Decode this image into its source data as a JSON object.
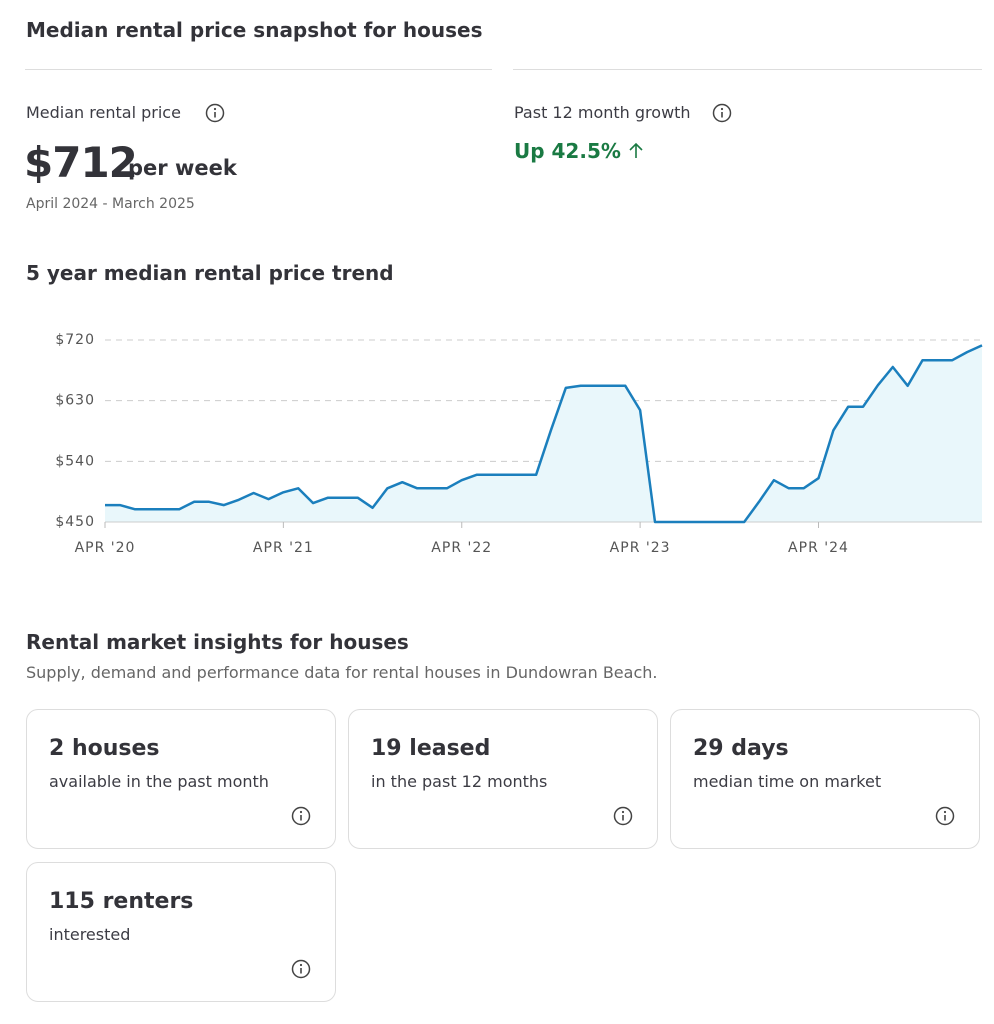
{
  "header": {
    "title": "Median rental price snapshot for houses"
  },
  "price": {
    "label": "Median rental price",
    "value": "$712",
    "unit": "per week",
    "period": "April 2024 - March 2025"
  },
  "growth": {
    "label": "Past 12 month growth",
    "value": "Up 42.5%"
  },
  "chart_data": {
    "type": "line",
    "title": "5 year median rental price trend",
    "categories": [
      "APR '20",
      null,
      null,
      null,
      null,
      null,
      null,
      null,
      null,
      null,
      null,
      null,
      "APR '21",
      null,
      null,
      null,
      null,
      null,
      null,
      null,
      null,
      null,
      null,
      null,
      "APR '22",
      null,
      null,
      null,
      null,
      null,
      null,
      null,
      null,
      null,
      null,
      null,
      "APR '23",
      null,
      null,
      null,
      null,
      null,
      null,
      null,
      null,
      null,
      null,
      null,
      "APR '24",
      null,
      null,
      null,
      null,
      null,
      null,
      null,
      null,
      null,
      null,
      null
    ],
    "values": [
      475,
      475,
      469,
      469,
      469,
      469,
      480,
      480,
      475,
      483,
      493,
      484,
      494,
      500,
      478,
      486,
      486,
      486,
      471,
      500,
      509,
      500,
      500,
      500,
      512,
      520,
      520,
      520,
      520,
      520,
      586,
      649,
      652,
      652,
      652,
      652,
      616,
      450,
      450,
      450,
      450,
      450,
      450,
      450,
      480,
      512,
      500,
      500,
      515,
      586,
      621,
      621,
      653,
      680,
      652,
      690,
      690,
      690,
      702,
      712
    ],
    "color": "#1b7fbd",
    "fill": "#e9f7fb",
    "ylim": [
      450,
      720
    ],
    "yticks": [
      {
        "value": 450,
        "label": "$450"
      },
      {
        "value": 540,
        "label": "$540"
      },
      {
        "value": 630,
        "label": "$630"
      },
      {
        "value": 720,
        "label": "$720"
      }
    ],
    "grid": true
  },
  "insights": {
    "title": "Rental market insights for houses",
    "subtitle": "Supply, demand and performance data for rental houses in Dundowran Beach.",
    "cards": [
      {
        "headline": "2 houses",
        "text": "available in the past month"
      },
      {
        "headline": "19 leased",
        "text": "in the past 12 months"
      },
      {
        "headline": "29 days",
        "text": "median time on market"
      },
      {
        "headline": "115 renters",
        "text": "interested"
      }
    ]
  }
}
